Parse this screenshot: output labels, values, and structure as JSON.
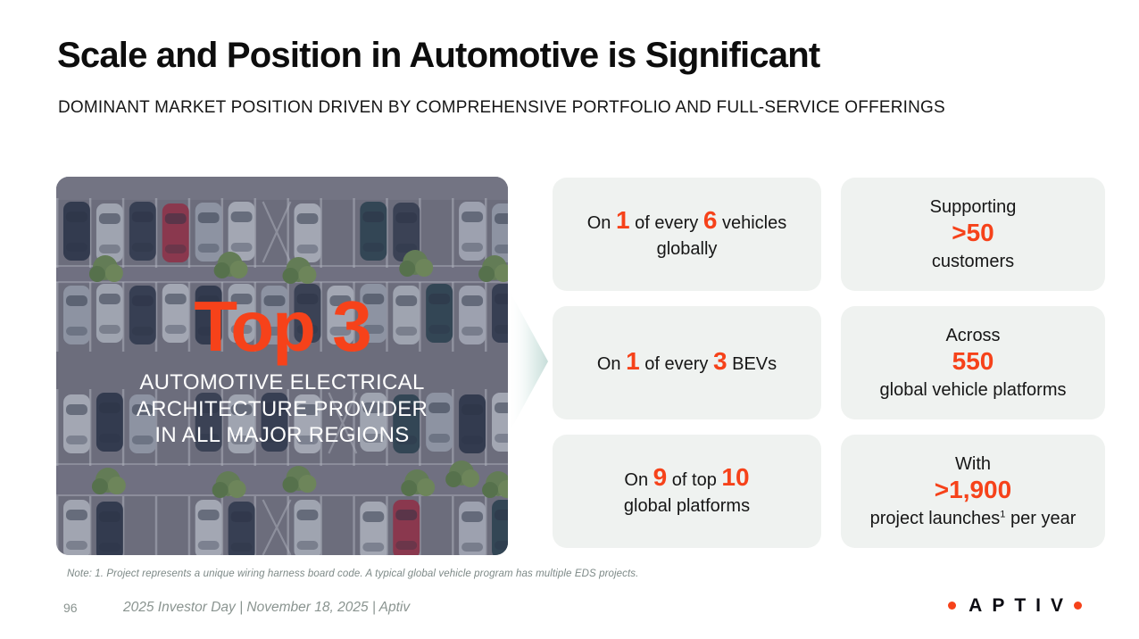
{
  "slide": {
    "title": "Scale and Position in Automotive is Significant",
    "subtitle": "DOMINANT MARKET POSITION DRIVEN BY COMPREHENSIVE PORTFOLIO AND FULL-SERVICE OFFERINGS"
  },
  "hero": {
    "headline": "Top 3",
    "lines": [
      "AUTOMOTIVE ELECTRICAL",
      "ARCHITECTURE PROVIDER",
      "IN ALL MAJOR REGIONS"
    ]
  },
  "cards": [
    {
      "id": "vehicles-globally",
      "lines": [
        [
          {
            "text": "On "
          },
          {
            "text": "1",
            "accent": true
          },
          {
            "text": " of every "
          },
          {
            "text": "6",
            "accent": true
          },
          {
            "text": " vehicles"
          }
        ],
        [
          {
            "text": "globally"
          }
        ]
      ]
    },
    {
      "id": "customers",
      "lines": [
        [
          {
            "text": "Supporting"
          }
        ],
        [
          {
            "text": ">50",
            "accent": true
          }
        ],
        [
          {
            "text": "customers"
          }
        ]
      ]
    },
    {
      "id": "bevs",
      "lines": [
        [
          {
            "text": "On "
          },
          {
            "text": "1",
            "accent": true
          },
          {
            "text": " of every "
          },
          {
            "text": "3",
            "accent": true
          },
          {
            "text": " BEVs"
          }
        ]
      ]
    },
    {
      "id": "vehicle-platforms",
      "lines": [
        [
          {
            "text": "Across"
          }
        ],
        [
          {
            "text": "550",
            "accent": true
          }
        ],
        [
          {
            "text": "global vehicle platforms"
          }
        ]
      ]
    },
    {
      "id": "top-global-platforms",
      "lines": [
        [
          {
            "text": "On "
          },
          {
            "text": "9",
            "accent": true
          },
          {
            "text": " of top "
          },
          {
            "text": "10",
            "accent": true
          }
        ],
        [
          {
            "text": "global platforms"
          }
        ]
      ]
    },
    {
      "id": "project-launches",
      "lines": [
        [
          {
            "text": "With"
          }
        ],
        [
          {
            "text": ">1,900",
            "accent": true
          }
        ],
        [
          {
            "text": "project launches",
            "sup": "1"
          },
          {
            "text": " per year"
          }
        ]
      ]
    }
  ],
  "footer": {
    "note": "Note: 1. Project represents a unique wiring harness board code. A typical global vehicle program has multiple EDS projects.",
    "page_number": "96",
    "event_line": "2025 Investor Day | November 18, 2025 | Aptiv",
    "logo_text": "APTIV"
  },
  "colors": {
    "accent_orange": "#F6421A",
    "card_background": "#EFF2F0",
    "footer_gray": "#8A9490"
  }
}
